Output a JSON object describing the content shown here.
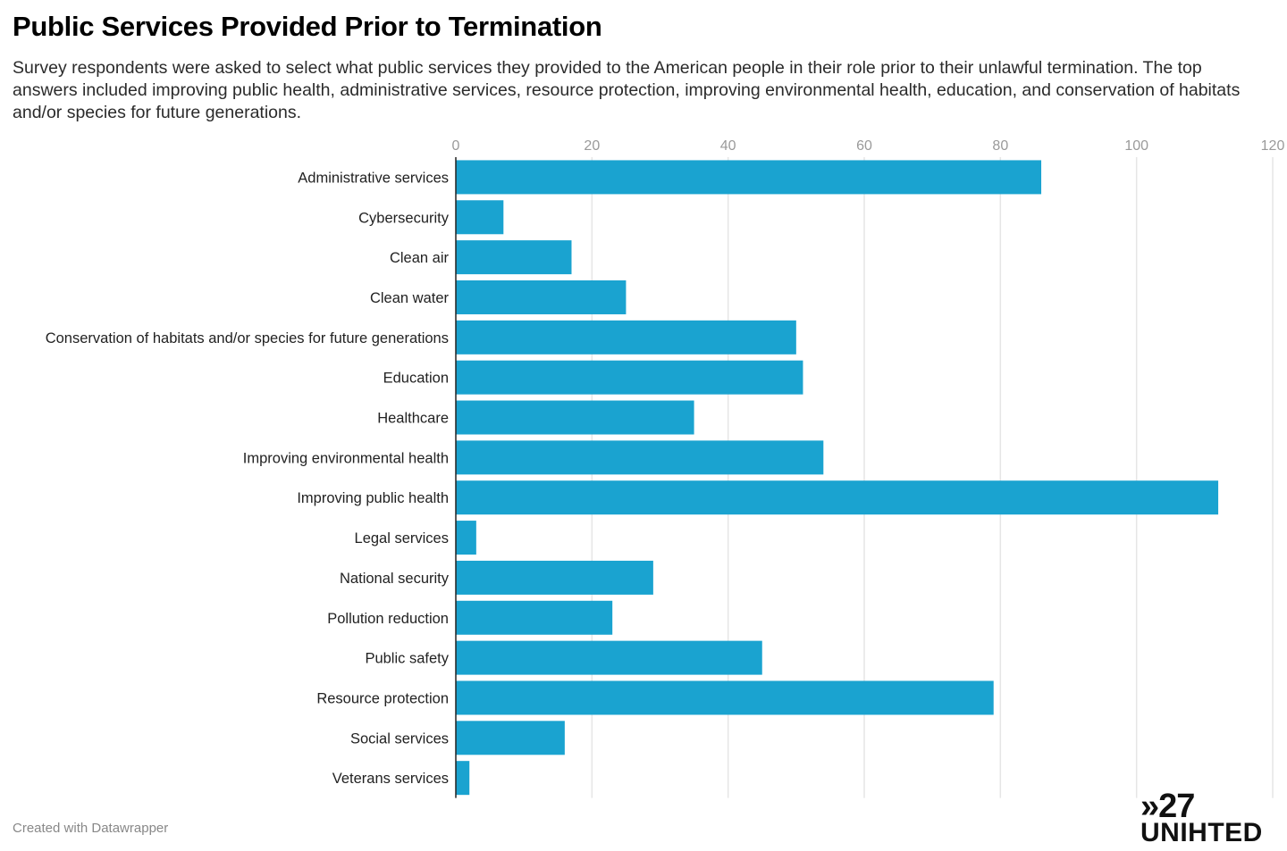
{
  "title": "Public Services Provided Prior to Termination",
  "subtitle": "Survey respondents were asked to select what public services they provided to the American people in their role prior to their unlawful termination. The top answers included improving public health, administrative services, resource protection, improving environmental health, education, and conservation of habitats and/or species for future generations.",
  "footer": "Created with Datawrapper",
  "logo": {
    "number": "»27",
    "word": "UNIHTED"
  },
  "colors": {
    "bar": "#1aa3d0",
    "grid": "#e6e6e6",
    "axis": "#222222"
  },
  "chart_data": {
    "type": "bar",
    "orientation": "horizontal",
    "categories": [
      "Administrative services",
      "Cybersecurity",
      "Clean air",
      "Clean water",
      "Conservation of habitats and/or species for future generations",
      "Education",
      "Healthcare",
      "Improving environmental health",
      "Improving public health",
      "Legal services",
      "National security",
      "Pollution reduction",
      "Public safety",
      "Resource protection",
      "Social services",
      "Veterans services"
    ],
    "values": [
      86,
      7,
      17,
      25,
      50,
      51,
      35,
      54,
      112,
      3,
      29,
      23,
      45,
      79,
      16,
      2
    ],
    "xlim": [
      0,
      120
    ],
    "xticks": [
      0,
      20,
      40,
      60,
      80,
      100,
      120
    ],
    "grid": true,
    "axis_position": "top"
  }
}
